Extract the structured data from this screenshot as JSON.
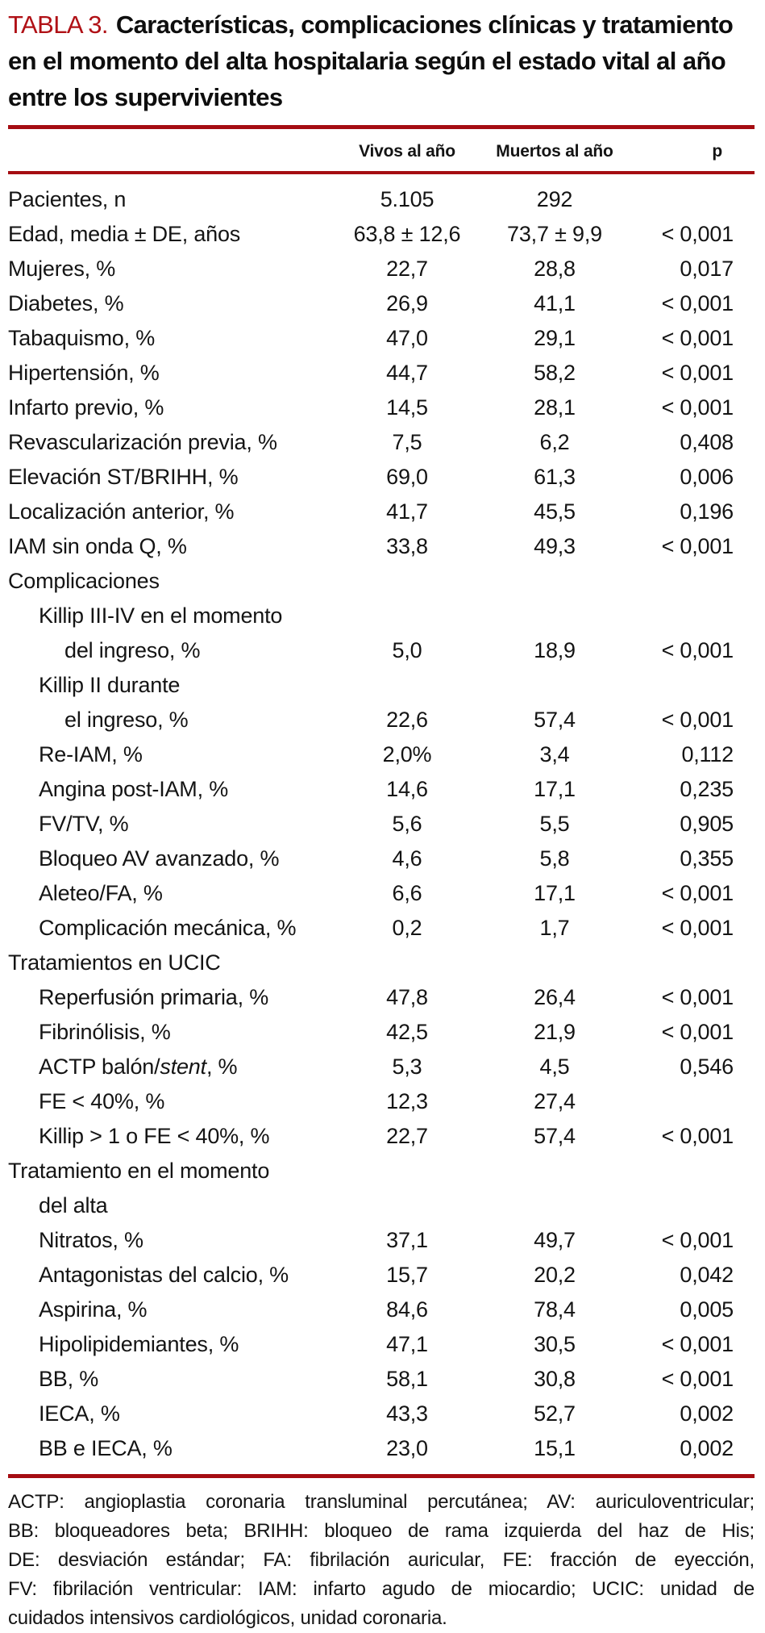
{
  "title": {
    "tag": "TABLA 3.",
    "text": "Características, complicaciones clínicas y tratamiento en el momento del alta hospitalaria según el estado vital al año entre los supervivientes"
  },
  "table": {
    "columns": [
      "",
      "Vivos al año",
      "Muertos al año",
      "p"
    ],
    "rows": [
      {
        "label": "Pacientes, n",
        "indent": 0,
        "vivos": "5.105",
        "muertos": "292",
        "p": ""
      },
      {
        "label": "Edad, media ± DE, años",
        "indent": 0,
        "vivos": "63,8 ± 12,6",
        "muertos": "73,7 ± 9,9",
        "p": "< 0,001"
      },
      {
        "label": "Mujeres, %",
        "indent": 0,
        "vivos": "22,7",
        "muertos": "28,8",
        "p": "0,017"
      },
      {
        "label": "Diabetes, %",
        "indent": 0,
        "vivos": "26,9",
        "muertos": "41,1",
        "p": "< 0,001"
      },
      {
        "label": "Tabaquismo, %",
        "indent": 0,
        "vivos": "47,0",
        "muertos": "29,1",
        "p": "< 0,001"
      },
      {
        "label": "Hipertensión, %",
        "indent": 0,
        "vivos": "44,7",
        "muertos": "58,2",
        "p": "< 0,001"
      },
      {
        "label": "Infarto previo, %",
        "indent": 0,
        "vivos": "14,5",
        "muertos": "28,1",
        "p": "< 0,001"
      },
      {
        "label": "Revascularización previa, %",
        "indent": 0,
        "vivos": "7,5",
        "muertos": "6,2",
        "p": "0,408"
      },
      {
        "label": "Elevación ST/BRIHH, %",
        "indent": 0,
        "vivos": "69,0",
        "muertos": "61,3",
        "p": "0,006"
      },
      {
        "label": "Localización anterior, %",
        "indent": 0,
        "vivos": "41,7",
        "muertos": "45,5",
        "p": "0,196"
      },
      {
        "label": "IAM sin onda Q, %",
        "indent": 0,
        "vivos": "33,8",
        "muertos": "49,3",
        "p": "< 0,001"
      },
      {
        "label": "Complicaciones",
        "indent": 0,
        "vivos": "",
        "muertos": "",
        "p": ""
      },
      {
        "label": "Killip III-IV en el momento",
        "indent": 1,
        "vivos": "",
        "muertos": "",
        "p": ""
      },
      {
        "label": "del ingreso, %",
        "indent": 2,
        "vivos": "5,0",
        "muertos": "18,9",
        "p": "< 0,001"
      },
      {
        "label": "Killip II durante",
        "indent": 1,
        "vivos": "",
        "muertos": "",
        "p": ""
      },
      {
        "label": "el ingreso, %",
        "indent": 2,
        "vivos": "22,6",
        "muertos": "57,4",
        "p": "< 0,001"
      },
      {
        "label": "Re-IAM, %",
        "indent": 1,
        "vivos": "2,0%",
        "muertos": "3,4",
        "p": "0,112"
      },
      {
        "label": "Angina post-IAM, %",
        "indent": 1,
        "vivos": "14,6",
        "muertos": "17,1",
        "p": "0,235"
      },
      {
        "label": "FV/TV, %",
        "indent": 1,
        "vivos": "5,6",
        "muertos": "5,5",
        "p": "0,905"
      },
      {
        "label": "Bloqueo AV avanzado, %",
        "indent": 1,
        "vivos": "4,6",
        "muertos": "5,8",
        "p": "0,355"
      },
      {
        "label": "Aleteo/FA, %",
        "indent": 1,
        "vivos": "6,6",
        "muertos": "17,1",
        "p": "< 0,001"
      },
      {
        "label": "Complicación mecánica, %",
        "indent": 1,
        "vivos": "0,2",
        "muertos": "1,7",
        "p": "< 0,001"
      },
      {
        "label": "Tratamientos en UCIC",
        "indent": 0,
        "vivos": "",
        "muertos": "",
        "p": ""
      },
      {
        "label": "Reperfusión primaria, %",
        "indent": 1,
        "vivos": "47,8",
        "muertos": "26,4",
        "p": "< 0,001"
      },
      {
        "label": "Fibrinólisis, %",
        "indent": 1,
        "vivos": "42,5",
        "muertos": "21,9",
        "p": "< 0,001"
      },
      {
        "label": "ACTP balón/[i]stent[/i], %",
        "indent": 1,
        "vivos": "5,3",
        "muertos": "4,5",
        "p": "0,546"
      },
      {
        "label": "FE < 40%, %",
        "indent": 1,
        "vivos": "12,3",
        "muertos": "27,4",
        "p": ""
      },
      {
        "label": "Killip > 1 o FE < 40%, %",
        "indent": 1,
        "vivos": "22,7",
        "muertos": "57,4",
        "p": "< 0,001"
      },
      {
        "label": "Tratamiento en el momento",
        "indent": 0,
        "vivos": "",
        "muertos": "",
        "p": ""
      },
      {
        "label": "del alta",
        "indent": 1,
        "vivos": "",
        "muertos": "",
        "p": ""
      },
      {
        "label": "Nitratos, %",
        "indent": 1,
        "vivos": "37,1",
        "muertos": "49,7",
        "p": "< 0,001"
      },
      {
        "label": "Antagonistas del calcio, %",
        "indent": 1,
        "vivos": "15,7",
        "muertos": "20,2",
        "p": "0,042"
      },
      {
        "label": "Aspirina, %",
        "indent": 1,
        "vivos": "84,6",
        "muertos": "78,4",
        "p": "0,005"
      },
      {
        "label": "Hipolipidemiantes, %",
        "indent": 1,
        "vivos": "47,1",
        "muertos": "30,5",
        "p": "< 0,001"
      },
      {
        "label": "BB, %",
        "indent": 1,
        "vivos": "58,1",
        "muertos": "30,8",
        "p": "< 0,001"
      },
      {
        "label": "IECA, %",
        "indent": 1,
        "vivos": "43,3",
        "muertos": "52,7",
        "p": "0,002"
      },
      {
        "label": "BB e IECA, %",
        "indent": 1,
        "vivos": "23,0",
        "muertos": "15,1",
        "p": "0,002"
      }
    ]
  },
  "footnote_lines": [
    "ACTP: angioplastia coronaria transluminal percutánea; AV: auriculoventricular;",
    "BB: bloqueadores beta; BRIHH: bloqueo de rama izquierda del haz de His;",
    "DE: desviación estándar; FA: fibrilación auricular, FE: fracción de eyección,",
    "FV: fibrilación ventricular: IAM: infarto agudo de miocardio; UCIC: unidad de",
    "cuidados intensivos cardiológicos, unidad coronaria."
  ],
  "colors": {
    "accent_red": "#B01116",
    "rule_red": "#A50D12",
    "text": "#141414"
  }
}
